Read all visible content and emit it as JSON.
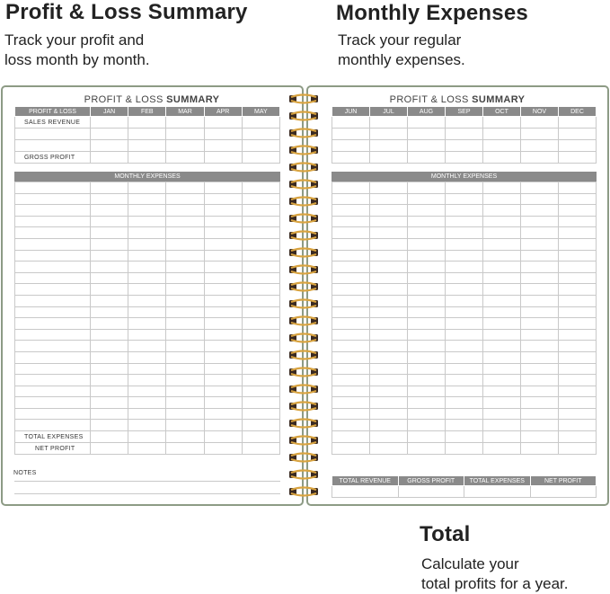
{
  "headings": {
    "left_title": "Profit & Loss Summary",
    "left_sub": "Track your profit and\nloss month by month.",
    "right_title": "Monthly Expenses",
    "right_sub": "Track your regular\nmonthly expenses.",
    "bottom_title": "Total",
    "bottom_sub": "Calculate your\ntotal profits for a year."
  },
  "planner": {
    "title_light": "PROFIT & LOSS ",
    "title_bold": "SUMMARY",
    "left_header_first": "PROFIT & LOSS",
    "left_months": [
      "JAN",
      "FEB",
      "MAR",
      "APR",
      "MAY"
    ],
    "right_months": [
      "JUN",
      "JUL",
      "AUG",
      "SEP",
      "OCT",
      "NOV",
      "DEC"
    ],
    "sales_revenue": "SALES REVENUE",
    "gross_profit": "GROSS PROFIT",
    "monthly_expenses": "MONTHLY EXPENSES",
    "total_expenses": "TOTAL EXPENSES",
    "net_profit": "NET PROFIT",
    "notes": "NOTES",
    "totals": [
      "TOTAL REVENUE",
      "GROSS PROFIT",
      "TOTAL EXPENSES",
      "NET PROFIT"
    ]
  },
  "colors": {
    "cover_border": "#8d9b85",
    "header_fill": "#8a8a8a",
    "ring_gold": "#d9a441",
    "ring_dark": "#3a2a22"
  }
}
